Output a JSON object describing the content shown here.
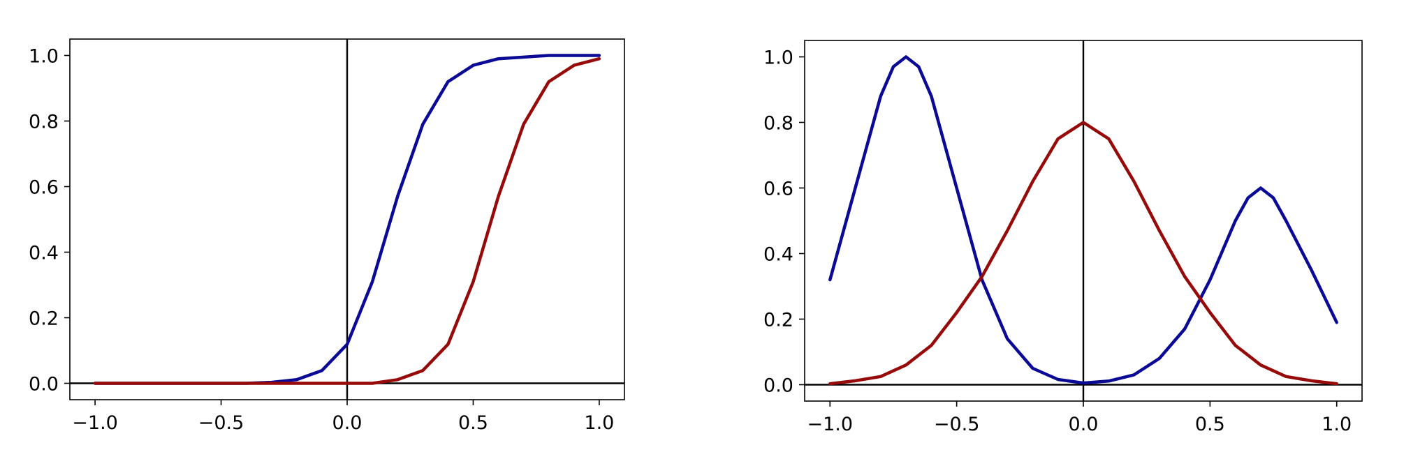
{
  "chart_data": [
    {
      "type": "line",
      "title": "",
      "xlabel": "",
      "ylabel": "",
      "xlim": [
        -1.1,
        1.1
      ],
      "ylim": [
        -0.05,
        1.05
      ],
      "xticks": [
        -1.0,
        -0.5,
        0.0,
        0.5,
        1.0
      ],
      "xtick_labels": [
        "−1.0",
        "−0.5",
        "0.0",
        "0.5",
        "1.0"
      ],
      "yticks": [
        0.0,
        0.2,
        0.4,
        0.6,
        0.8,
        1.0
      ],
      "ytick_labels": [
        "0.0",
        "0.2",
        "0.4",
        "0.6",
        "0.8",
        "1.0"
      ],
      "grid": false,
      "reference_lines": {
        "x": 0,
        "y": 0
      },
      "series": [
        {
          "color": "#0a0a96",
          "x": [
            -1.0,
            -0.8,
            -0.6,
            -0.4,
            -0.3,
            -0.2,
            -0.1,
            0.0,
            0.1,
            0.2,
            0.3,
            0.4,
            0.5,
            0.6,
            0.8,
            1.0
          ],
          "y": [
            0.0,
            0.0,
            0.0,
            0.0,
            0.003,
            0.011,
            0.039,
            0.119,
            0.31,
            0.57,
            0.79,
            0.92,
            0.97,
            0.99,
            1.0,
            1.0
          ]
        },
        {
          "color": "#960a0a",
          "x": [
            -1.0,
            -0.5,
            0.0,
            0.1,
            0.2,
            0.3,
            0.4,
            0.5,
            0.6,
            0.7,
            0.8,
            0.9,
            1.0
          ],
          "y": [
            0.0,
            0.0,
            0.0,
            0.0,
            0.011,
            0.039,
            0.119,
            0.31,
            0.57,
            0.79,
            0.92,
            0.97,
            0.99
          ]
        }
      ]
    },
    {
      "type": "line",
      "title": "",
      "xlabel": "",
      "ylabel": "",
      "xlim": [
        -1.1,
        1.1
      ],
      "ylim": [
        -0.05,
        1.05
      ],
      "xticks": [
        -1.0,
        -0.5,
        0.0,
        0.5,
        1.0
      ],
      "xtick_labels": [
        "−1.0",
        "−0.5",
        "0.0",
        "0.5",
        "1.0"
      ],
      "yticks": [
        0.0,
        0.2,
        0.4,
        0.6,
        0.8,
        1.0
      ],
      "ytick_labels": [
        "0.0",
        "0.2",
        "0.4",
        "0.6",
        "0.8",
        "1.0"
      ],
      "grid": false,
      "reference_lines": {
        "x": 0,
        "y": 0
      },
      "series": [
        {
          "color": "#0a0a96",
          "x": [
            -1.0,
            -0.9,
            -0.8,
            -0.75,
            -0.7,
            -0.65,
            -0.6,
            -0.5,
            -0.4,
            -0.3,
            -0.2,
            -0.1,
            0.0,
            0.1,
            0.2,
            0.3,
            0.4,
            0.5,
            0.6,
            0.65,
            0.7,
            0.75,
            0.8,
            0.9,
            1.0
          ],
          "y": [
            0.32,
            0.6,
            0.88,
            0.97,
            1.0,
            0.97,
            0.88,
            0.6,
            0.32,
            0.14,
            0.05,
            0.016,
            0.005,
            0.011,
            0.03,
            0.08,
            0.17,
            0.32,
            0.5,
            0.57,
            0.6,
            0.57,
            0.5,
            0.35,
            0.19
          ]
        },
        {
          "color": "#960a0a",
          "x": [
            -1.0,
            -0.9,
            -0.8,
            -0.7,
            -0.6,
            -0.5,
            -0.4,
            -0.3,
            -0.2,
            -0.1,
            0.0,
            0.1,
            0.2,
            0.3,
            0.4,
            0.5,
            0.6,
            0.7,
            0.8,
            0.9,
            1.0
          ],
          "y": [
            0.003,
            0.012,
            0.025,
            0.06,
            0.12,
            0.22,
            0.33,
            0.47,
            0.62,
            0.75,
            0.8,
            0.75,
            0.62,
            0.47,
            0.33,
            0.22,
            0.12,
            0.06,
            0.025,
            0.012,
            0.003
          ]
        }
      ]
    }
  ]
}
